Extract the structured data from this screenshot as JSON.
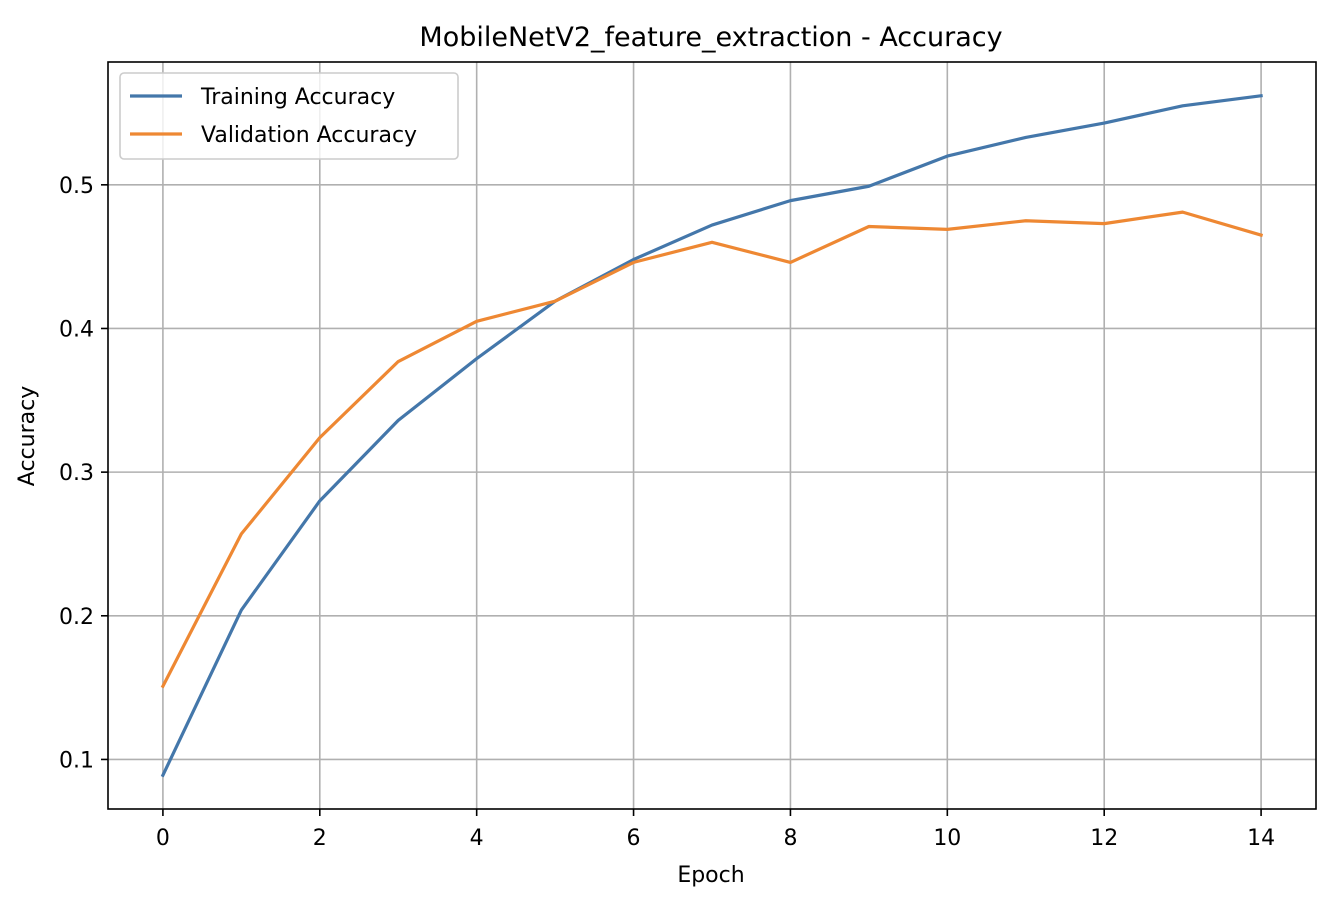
{
  "chart_data": {
    "type": "line",
    "title": "MobileNetV2_feature_extraction - Accuracy",
    "xlabel": "Epoch",
    "ylabel": "Accuracy",
    "x": [
      0,
      1,
      2,
      3,
      4,
      5,
      6,
      7,
      8,
      9,
      10,
      11,
      12,
      13,
      14
    ],
    "xticks": [
      "0",
      "2",
      "4",
      "6",
      "8",
      "10",
      "12",
      "14"
    ],
    "xtick_values": [
      0,
      2,
      4,
      6,
      8,
      10,
      12,
      14
    ],
    "yticks": [
      "0.1",
      "0.2",
      "0.3",
      "0.4",
      "0.5"
    ],
    "ytick_values": [
      0.1,
      0.2,
      0.3,
      0.4,
      0.5
    ],
    "xlim": [
      -0.7,
      14.7
    ],
    "ylim": [
      0.0655,
      0.5855
    ],
    "grid": true,
    "legend_position": "top-left",
    "series": [
      {
        "name": "Training Accuracy",
        "color": "#4477aa",
        "values": [
          0.089,
          0.204,
          0.28,
          0.336,
          0.379,
          0.419,
          0.448,
          0.472,
          0.489,
          0.499,
          0.52,
          0.533,
          0.543,
          0.555,
          0.562
        ]
      },
      {
        "name": "Validation Accuracy",
        "color": "#ee8833",
        "values": [
          0.151,
          0.257,
          0.324,
          0.377,
          0.405,
          0.419,
          0.446,
          0.46,
          0.446,
          0.471,
          0.469,
          0.475,
          0.473,
          0.481,
          0.465
        ]
      }
    ]
  }
}
